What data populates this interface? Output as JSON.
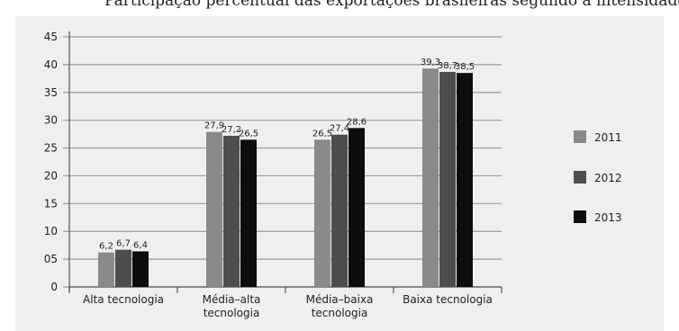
{
  "header": {
    "cut_text": "Participação percentual das exportações brasileiras segundo a intensidade tecnológica"
  },
  "chart_data": {
    "type": "bar",
    "categories": [
      "Alta tecnologia",
      "Média–alta tecnologia",
      "Média–baixa tecnologia",
      "Baixa tecnologia"
    ],
    "category_lines": [
      [
        "Alta tecnologia"
      ],
      [
        "Média–alta",
        "tecnologia"
      ],
      [
        "Média–baixa",
        "tecnologia"
      ],
      [
        "Baixa tecnologia"
      ]
    ],
    "series": [
      {
        "name": "2011",
        "values": [
          6.2,
          27.9,
          26.5,
          39.3
        ],
        "labels": [
          "6,2",
          "27,9",
          "26,5",
          "39,3"
        ]
      },
      {
        "name": "2012",
        "values": [
          6.7,
          27.2,
          27.4,
          38.7
        ],
        "labels": [
          "6,7",
          "27,2",
          "27,4",
          "38,7"
        ]
      },
      {
        "name": "2013",
        "values": [
          6.4,
          26.5,
          28.6,
          38.5
        ],
        "labels": [
          "6,4",
          "26,5",
          "28,6",
          "38,5"
        ]
      }
    ],
    "colors": [
      "#8a8a8a",
      "#4d4d4d",
      "#0d0d0d"
    ],
    "yticks": [
      "0",
      "05",
      "10",
      "15",
      "20",
      "25",
      "30",
      "35",
      "40",
      "45"
    ],
    "ylim": [
      0,
      45
    ],
    "grid": true,
    "legend": "right",
    "title": "",
    "xlabel": "",
    "ylabel": ""
  }
}
